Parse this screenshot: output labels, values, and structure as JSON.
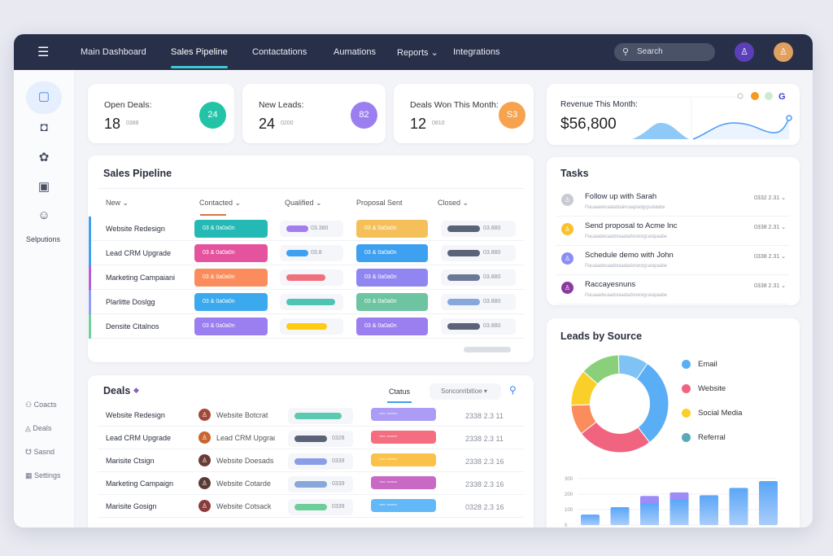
{
  "nav": {
    "items": [
      "Main Dashboard",
      "Sales Pipeline",
      "Contactations",
      "Aumations",
      "Reports",
      "Integrations"
    ],
    "active": "Sales Pipeline",
    "search_placeholder": "Search"
  },
  "sidebar": {
    "label": "Selputions",
    "bottom": [
      "Coacts",
      "Deals",
      "Sasnd",
      "Settings"
    ]
  },
  "stats": [
    {
      "title": "Open Deals:",
      "value": "18",
      "sub": "0388",
      "badge": "24",
      "color": "#22c3a6"
    },
    {
      "title": "New Leads:",
      "value": "24",
      "sub": "0200",
      "badge": "82",
      "color": "#9b7ff0"
    },
    {
      "title": "Deals Won This Month:",
      "value": "12",
      "sub": "0810",
      "badge": "S3",
      "color": "#f7a24e"
    }
  ],
  "revenue": {
    "title": "Revenue This Month:",
    "value": "$56,800"
  },
  "pipeline": {
    "title": "Sales Pipeline",
    "columns": [
      "New",
      "Contacted",
      "Qualified",
      "Proposal Sent",
      "Closed"
    ],
    "rows": [
      {
        "name": "Website Redesign",
        "accent": "#3ea0f0",
        "c1": "#25b9b6",
        "q": "#a47cf0",
        "qn": "03.380",
        "p": "#f5c05a",
        "cl": "#5a6378",
        "cln": "03.880"
      },
      {
        "name": "Lead CRM Upgrade",
        "accent": "#3ea0f0",
        "c1": "#e5539f",
        "q": "#3ea0f0",
        "qn": "03.8",
        "p": "#3ea0f0",
        "cl": "#5a6378",
        "cln": "03.880"
      },
      {
        "name": "Marketing Campaiani",
        "accent": "#b15fd8",
        "c1": "#fb8c5c",
        "q": "#f0707d",
        "qn": "",
        "p": "#8f86f2",
        "cl": "#6c7896",
        "cln": "03.880"
      },
      {
        "name": "Plarlitte Doslgg",
        "accent": "#8f9ef5",
        "c1": "#3aa9ee",
        "q": "#4ec4b5",
        "qn": "",
        "p": "#6cc5a0",
        "cl": "#86a8da",
        "cln": "03.880"
      },
      {
        "name": "Densite Citalnos",
        "accent": "#74d09a",
        "c1": "#9b7ff0",
        "q": "#ffcc10",
        "qn": "",
        "p": "#9b7ff0",
        "cl": "#5a6378",
        "cln": "03.880"
      }
    ],
    "pill_text": "03 & 0a0a0n"
  },
  "tasks": {
    "title": "Tasks",
    "items": [
      {
        "title": "Follow up with Sarah",
        "sub": "Pacaaadecaatadoaincaap/adgcpsdatabe",
        "time": "0332 2.31",
        "color": "#c9cbd2"
      },
      {
        "title": "Send proposal to Acme Inc",
        "sub": "Pacaaadecaadoraaatadorarorgcarapaabe",
        "time": "0338 2.31",
        "color": "#fbc02d"
      },
      {
        "title": "Schedule demo with John",
        "sub": "Pacaaadecaadoraaatadorarorgcarapaabe",
        "time": "0338 2.31",
        "color": "#8a8ff5"
      },
      {
        "title": "Raccayesnuns",
        "sub": "Pacaaadecaadoraaatadorarorgcarapaabe",
        "time": "0338 2.31",
        "color": "#8b3b9e"
      }
    ]
  },
  "leads": {
    "title": "Leads by Source",
    "legend": [
      {
        "label": "Email",
        "color": "#5aaef5"
      },
      {
        "label": "Website",
        "color": "#f0647f"
      },
      {
        "label": "Social Media",
        "color": "#fbcf2a"
      },
      {
        "label": "Referral",
        "color": "#5aa8b8"
      }
    ]
  },
  "chart_data": {
    "type": "bar",
    "categories": [
      "",
      "",
      "",
      "",
      "",
      "",
      ""
    ],
    "values": [
      68,
      116,
      188,
      211,
      193,
      240,
      284
    ],
    "yticks": [
      "0",
      "100",
      "200",
      "300"
    ],
    "ylim": [
      0,
      300
    ]
  },
  "deals": {
    "title": "Deals",
    "status_tab": "Ctatus",
    "filter": "Sonconribitioe",
    "rows": [
      {
        "name": "Website Redesign",
        "contact": "Website Botcrat",
        "bar": "#5cc9b0",
        "n": "",
        "pill": "#ad9cf5",
        "date": "2338 2.3 11",
        "av": "#a0493a"
      },
      {
        "name": "Lead CRM Upgrade",
        "contact": "Lead CRM Upgrad",
        "bar": "#5a6378",
        "n": "0328",
        "pill": "#f56e80",
        "date": "2338 2.3 11",
        "av": "#c9652f"
      },
      {
        "name": "Marisite Ctsign",
        "contact": "Website Doesads",
        "bar": "#8a9de6",
        "n": "0339",
        "pill": "#fbc24a",
        "date": "2338 2.3 16",
        "av": "#6b3a34"
      },
      {
        "name": "Marketing Campaign",
        "contact": "Website Cotarde",
        "bar": "#86a8da",
        "n": "0339",
        "pill": "#c86ac4",
        "date": "2338 2.3 16",
        "av": "#5a3a35"
      },
      {
        "name": "Marisite Gosign",
        "contact": "Website Cotsack",
        "bar": "#6ccf9a",
        "n": "0339",
        "pill": "#63b8f8",
        "date": "0328 2.3 16",
        "av": "#8a3b3b"
      }
    ]
  }
}
